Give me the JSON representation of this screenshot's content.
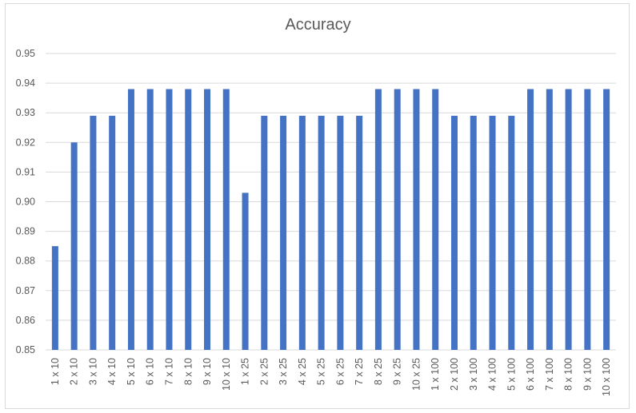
{
  "chart_data": {
    "type": "bar",
    "title": "Accuracy",
    "xlabel": "",
    "ylabel": "",
    "ylim": [
      0.85,
      0.95
    ],
    "yticks": [
      "0.85",
      "0.86",
      "0.87",
      "0.88",
      "0.89",
      "0.90",
      "0.91",
      "0.92",
      "0.93",
      "0.94",
      "0.95"
    ],
    "grid": true,
    "bar_color": "#4472c4",
    "grid_color": "#d9d9d9",
    "categories": [
      "1 x 10",
      "2 x 10",
      "3 x 10",
      "4 x 10",
      "5 x 10",
      "6 x 10",
      "7 x 10",
      "8 x 10",
      "9 x 10",
      "10 x 10",
      "1 x 25",
      "2 x 25",
      "3 x 25",
      "4 x 25",
      "5 x 25",
      "6 x 25",
      "7 x 25",
      "8 x 25",
      "9 x 25",
      "10 x 25",
      "1 x 100",
      "2 x 100",
      "3 x 100",
      "4 x 100",
      "5 x 100",
      "6 x 100",
      "7 x 100",
      "8 x 100",
      "9 x 100",
      "10 x 100"
    ],
    "values": [
      0.885,
      0.92,
      0.929,
      0.929,
      0.938,
      0.938,
      0.938,
      0.938,
      0.938,
      0.938,
      0.903,
      0.929,
      0.929,
      0.929,
      0.929,
      0.929,
      0.929,
      0.938,
      0.938,
      0.938,
      0.938,
      0.929,
      0.929,
      0.929,
      0.929,
      0.938,
      0.938,
      0.938,
      0.938,
      0.938
    ]
  }
}
